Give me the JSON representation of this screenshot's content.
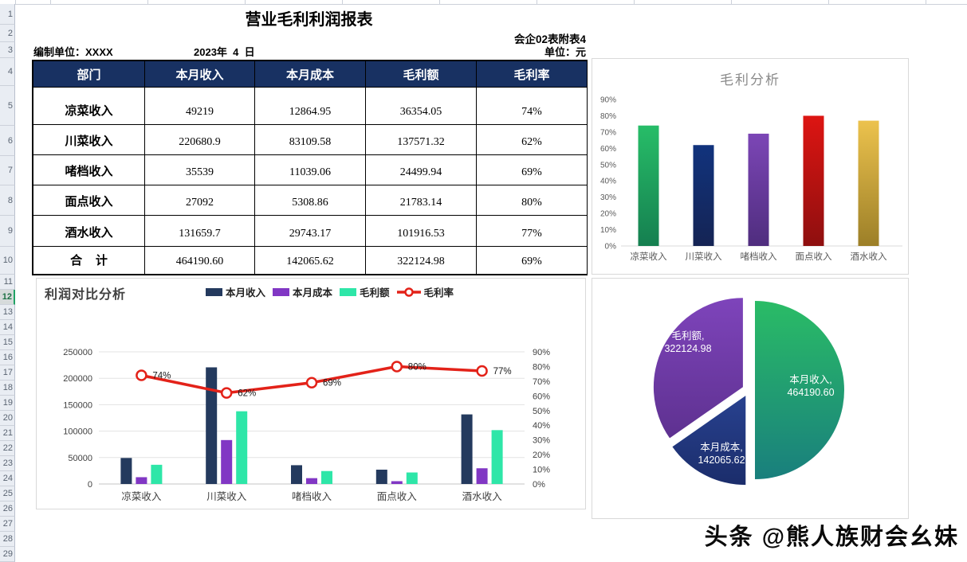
{
  "sheet": {
    "title": "营业毛利利润报表",
    "doc_ref": "会企02表附表4",
    "prepared_by": "编制单位：XXXX",
    "date": "2023年  4  日",
    "unit": "单位：元",
    "row_numbers": [
      "1",
      "2",
      "3",
      "4",
      "5",
      "6",
      "7",
      "8",
      "9",
      "10",
      "11",
      "12",
      "13",
      "14",
      "15",
      "16",
      "17",
      "18",
      "19",
      "20",
      "21",
      "22",
      "23",
      "24",
      "25",
      "26",
      "27",
      "28",
      "29"
    ],
    "selected_row": "12"
  },
  "table": {
    "header_bg": "#183162",
    "headers": [
      "部门",
      "本月收入",
      "本月成本",
      "毛利额",
      "毛利率"
    ],
    "rows": [
      [
        "凉菜收入",
        "49219",
        "12864.95",
        "36354.05",
        "74%"
      ],
      [
        "川菜收入",
        "220680.9",
        "83109.58",
        "137571.32",
        "62%"
      ],
      [
        "啫档收入",
        "35539",
        "11039.06",
        "24499.94",
        "69%"
      ],
      [
        "面点收入",
        "27092",
        "5308.86",
        "21783.14",
        "80%"
      ],
      [
        "酒水收入",
        "131659.7",
        "29743.17",
        "101916.53",
        "77%"
      ],
      [
        "合    计",
        "464190.60",
        "142065.62",
        "322124.98",
        "69%"
      ]
    ]
  },
  "chart_data": [
    {
      "type": "bar",
      "title": "毛利分析",
      "categories": [
        "凉菜收入",
        "川菜收入",
        "啫档收入",
        "面点收入",
        "酒水收入"
      ],
      "values": [
        74,
        62,
        69,
        80,
        77
      ],
      "value_unit": "%",
      "ylim": [
        0,
        90
      ],
      "ytick_step": 10,
      "ytick_labels": [
        "0%",
        "10%",
        "20%",
        "30%",
        "40%",
        "50%",
        "60%",
        "70%",
        "80%",
        "90%"
      ],
      "grid": false,
      "bar_gradients": [
        [
          "#27bd68",
          "#157f50"
        ],
        [
          "#11337d",
          "#152454"
        ],
        [
          "#7c46b6",
          "#4f2d7e"
        ],
        [
          "#dd1512",
          "#8e0f0f"
        ],
        [
          "#ecc24d",
          "#9c7f28"
        ]
      ]
    },
    {
      "type": "bar",
      "subtype": "combo-bar-line",
      "title": "利润对比分析",
      "categories": [
        "凉菜收入",
        "川菜收入",
        "啫档收入",
        "面点收入",
        "酒水收入"
      ],
      "series": [
        {
          "name": "本月收入",
          "kind": "bar",
          "color": "#243a5e",
          "axis": "left",
          "values": [
            49219,
            220680.9,
            35539,
            27092,
            131659.7
          ]
        },
        {
          "name": "本月成本",
          "kind": "bar",
          "color": "#8137c4",
          "axis": "left",
          "values": [
            12864.95,
            83109.58,
            11039.06,
            5308.86,
            29743.17
          ]
        },
        {
          "name": "毛利额",
          "kind": "bar",
          "color": "#2ee6a8",
          "axis": "left",
          "values": [
            36354.05,
            137571.32,
            24499.94,
            21783.14,
            101916.53
          ]
        },
        {
          "name": "毛利率",
          "kind": "line",
          "color": "#e32219",
          "axis": "right",
          "values": [
            74,
            62,
            69,
            80,
            77
          ],
          "point_labels": [
            "74%",
            "62%",
            "69%",
            "80%",
            "77%"
          ]
        }
      ],
      "left_axis": {
        "min": 0,
        "max": 250000,
        "step": 50000,
        "tick_labels": [
          "0",
          "50000",
          "100000",
          "150000",
          "200000",
          "250000"
        ]
      },
      "right_axis": {
        "min": 0,
        "max": 90,
        "step": 10,
        "tick_labels": [
          "0%",
          "10%",
          "20%",
          "30%",
          "40%",
          "50%",
          "60%",
          "70%",
          "80%",
          "90%"
        ]
      },
      "grid": true,
      "legend_position": "top"
    },
    {
      "type": "pie",
      "exploded": true,
      "direction": "clockwise",
      "start_angle_deg": 0,
      "slices": [
        {
          "name": "本月收入",
          "value": 464190.6,
          "label_lines": [
            "本月收入,",
            "464190.60"
          ],
          "gradient": [
            "#2abc66",
            "#197f7d"
          ]
        },
        {
          "name": "本月成本",
          "value": 142065.62,
          "label_lines": [
            "本月成本,",
            "142065.62"
          ],
          "gradient": [
            "#28418f",
            "#1b2d6b"
          ]
        },
        {
          "name": "毛利额",
          "value": 322124.98,
          "label_lines": [
            "毛利额,",
            "322124.98"
          ],
          "gradient": [
            "#7e44bb",
            "#5e3190"
          ]
        }
      ]
    }
  ],
  "watermark": "头条 @熊人族财会幺妹"
}
